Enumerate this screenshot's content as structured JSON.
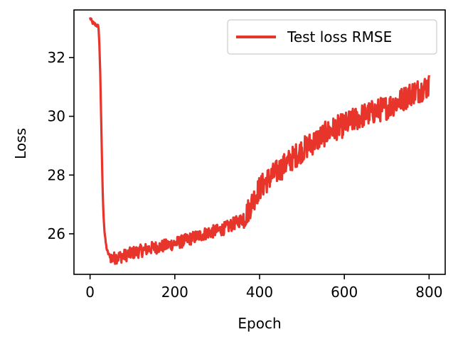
{
  "chart_data": {
    "type": "line",
    "xlabel": "Epoch",
    "ylabel": "Loss",
    "xlim": [
      -38,
      838
    ],
    "ylim": [
      24.62,
      33.62
    ],
    "x_ticks": [
      0,
      200,
      400,
      600,
      800
    ],
    "y_ticks": [
      26,
      28,
      30,
      32
    ],
    "grid": false,
    "legend_position": "top-right",
    "series": [
      {
        "name": "Test loss RMSE",
        "color": "#e8352b",
        "x": [
          0,
          5,
          10,
          15,
          20,
          22,
          24,
          26,
          28,
          30,
          32,
          34,
          36,
          38,
          40,
          42,
          44,
          46,
          50,
          55,
          60,
          70,
          80,
          90,
          100,
          120,
          140,
          160,
          180,
          200,
          220,
          240,
          260,
          280,
          300,
          320,
          340,
          360,
          370,
          380,
          390,
          400,
          410,
          420,
          440,
          460,
          480,
          500,
          520,
          540,
          560,
          580,
          600,
          620,
          640,
          660,
          680,
          700,
          720,
          740,
          760,
          780,
          800
        ],
        "values": [
          33.35,
          33.2,
          33.15,
          33.1,
          33.05,
          32.4,
          31.5,
          30.0,
          28.6,
          27.3,
          26.6,
          26.1,
          25.8,
          25.6,
          25.45,
          25.35,
          25.3,
          25.25,
          25.2,
          25.15,
          25.2,
          25.22,
          25.25,
          25.3,
          25.35,
          25.42,
          25.5,
          25.55,
          25.6,
          25.68,
          25.75,
          25.85,
          25.95,
          26.05,
          26.1,
          26.2,
          26.35,
          26.5,
          26.7,
          27.0,
          27.3,
          27.55,
          27.7,
          27.85,
          28.1,
          28.35,
          28.6,
          28.85,
          29.05,
          29.25,
          29.45,
          29.6,
          29.7,
          29.85,
          30.0,
          30.1,
          30.2,
          30.3,
          30.45,
          30.6,
          30.8,
          30.9,
          31.05
        ]
      }
    ]
  }
}
